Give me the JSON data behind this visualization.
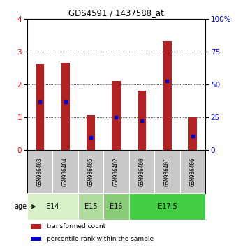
{
  "title": "GDS4591 / 1437588_at",
  "samples": [
    "GSM936403",
    "GSM936404",
    "GSM936405",
    "GSM936402",
    "GSM936400",
    "GSM936401",
    "GSM936406"
  ],
  "bar_heights": [
    2.6,
    2.65,
    1.05,
    2.1,
    1.8,
    3.3,
    1.0
  ],
  "blue_dot_y": [
    1.45,
    1.45,
    0.38,
    1.0,
    0.88,
    2.1,
    0.42
  ],
  "ylim": [
    0,
    4
  ],
  "yticks_left": [
    0,
    1,
    2,
    3,
    4
  ],
  "bar_color": "#b22222",
  "dot_color": "#0000cc",
  "bar_width": 0.35,
  "age_groups": [
    {
      "label": "E14",
      "start": 0,
      "end": 2,
      "color": "#d8f0c8"
    },
    {
      "label": "E15",
      "start": 2,
      "end": 3,
      "color": "#b0dca0"
    },
    {
      "label": "E16",
      "start": 3,
      "end": 4,
      "color": "#88cc78"
    },
    {
      "label": "E17.5",
      "start": 4,
      "end": 7,
      "color": "#44cc44"
    }
  ],
  "legend_items": [
    {
      "label": "transformed count",
      "color": "#b22222"
    },
    {
      "label": "percentile rank within the sample",
      "color": "#0000cc"
    }
  ],
  "background_color": "#ffffff",
  "label_area_bg": "#c8c8c8",
  "age_label": "age"
}
